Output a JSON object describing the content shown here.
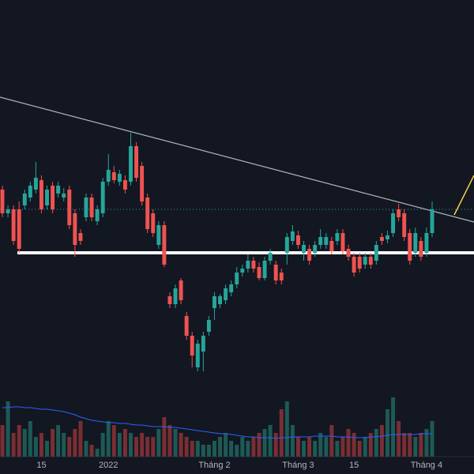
{
  "chart_data": {
    "type": "candlestick",
    "categories": [
      null,
      null,
      null,
      null,
      null,
      null,
      null,
      "15",
      null,
      null,
      null,
      null,
      null,
      null,
      null,
      null,
      null,
      null,
      null,
      "2022",
      null,
      null,
      null,
      null,
      null,
      null,
      null,
      null,
      null,
      null,
      null,
      null,
      null,
      null,
      null,
      null,
      null,
      null,
      "Tháng 2",
      null,
      null,
      null,
      null,
      null,
      null,
      null,
      null,
      null,
      null,
      null,
      null,
      null,
      null,
      "Tháng 3",
      null,
      null,
      null,
      null,
      null,
      null,
      null,
      null,
      null,
      "15",
      null,
      null,
      null,
      null,
      null,
      null,
      null,
      null,
      null,
      null,
      null,
      null,
      "Tháng 4",
      null
    ],
    "open": [
      360,
      330,
      335,
      335,
      340,
      350,
      360,
      372,
      340,
      365,
      355,
      350,
      360,
      330,
      305,
      325,
      350,
      320,
      330,
      370,
      382,
      370,
      372,
      370,
      415,
      390,
      350,
      330,
      290,
      315,
      225,
      215,
      245,
      200,
      175,
      135,
      155,
      180,
      210,
      215,
      220,
      230,
      240,
      255,
      260,
      270,
      262,
      248,
      270,
      265,
      255,
      280,
      295,
      302,
      280,
      285,
      280,
      290,
      290,
      295,
      295,
      305,
      285,
      275,
      275,
      265,
      275,
      270,
      300,
      297,
      305,
      335,
      330,
      305,
      280,
      295,
      280,
      305
    ],
    "high": [
      365,
      340,
      340,
      345,
      360,
      370,
      395,
      378,
      365,
      370,
      370,
      362,
      365,
      335,
      310,
      355,
      355,
      340,
      375,
      405,
      390,
      385,
      378,
      432,
      420,
      395,
      355,
      335,
      320,
      320,
      230,
      240,
      248,
      205,
      180,
      170,
      180,
      200,
      230,
      228,
      240,
      245,
      262,
      265,
      278,
      275,
      268,
      275,
      285,
      270,
      260,
      305,
      315,
      308,
      295,
      290,
      295,
      310,
      305,
      300,
      310,
      310,
      290,
      280,
      280,
      280,
      280,
      295,
      305,
      308,
      335,
      342,
      335,
      310,
      312,
      300,
      312,
      345
    ],
    "low": [
      325,
      325,
      290,
      280,
      335,
      345,
      355,
      330,
      335,
      330,
      350,
      345,
      310,
      275,
      290,
      320,
      320,
      315,
      325,
      365,
      368,
      365,
      355,
      365,
      370,
      340,
      305,
      300,
      285,
      262,
      210,
      210,
      215,
      170,
      135,
      130,
      130,
      175,
      195,
      210,
      215,
      225,
      235,
      250,
      255,
      255,
      245,
      245,
      265,
      240,
      240,
      265,
      290,
      285,
      270,
      265,
      275,
      285,
      285,
      278,
      290,
      278,
      270,
      250,
      255,
      260,
      260,
      265,
      290,
      292,
      300,
      320,
      295,
      265,
      275,
      270,
      275,
      300
    ],
    "close": [
      330,
      335,
      295,
      285,
      355,
      365,
      375,
      335,
      360,
      335,
      365,
      355,
      315,
      290,
      295,
      350,
      325,
      335,
      370,
      385,
      372,
      380,
      360,
      415,
      375,
      345,
      310,
      305,
      315,
      265,
      215,
      235,
      220,
      175,
      150,
      165,
      175,
      195,
      225,
      225,
      235,
      240,
      255,
      260,
      270,
      260,
      248,
      270,
      280,
      245,
      245,
      300,
      307,
      290,
      290,
      270,
      290,
      300,
      300,
      282,
      305,
      282,
      275,
      255,
      260,
      275,
      265,
      290,
      295,
      302,
      330,
      325,
      300,
      270,
      305,
      275,
      305,
      335
    ],
    "ylim": [
      0,
      600
    ],
    "volume": [
      40,
      70,
      30,
      40,
      35,
      45,
      25,
      30,
      20,
      35,
      40,
      30,
      25,
      35,
      45,
      20,
      15,
      10,
      30,
      45,
      40,
      30,
      35,
      30,
      25,
      30,
      25,
      25,
      35,
      50,
      40,
      35,
      30,
      25,
      20,
      20,
      15,
      15,
      20,
      25,
      30,
      20,
      15,
      25,
      20,
      25,
      30,
      35,
      40,
      30,
      60,
      70,
      40,
      25,
      20,
      25,
      20,
      30,
      25,
      40,
      20,
      25,
      35,
      30,
      20,
      25,
      30,
      35,
      40,
      60,
      75,
      45,
      30,
      30,
      25,
      30,
      35,
      45
    ],
    "volume_ma": [
      62,
      62,
      63,
      63,
      62,
      62,
      61,
      60,
      60,
      59,
      58,
      57,
      55,
      53,
      50,
      48,
      46,
      45,
      44,
      43,
      43,
      42,
      42,
      41,
      40,
      40,
      39,
      38,
      38,
      38,
      37,
      37,
      36,
      35,
      34,
      33,
      32,
      31,
      30,
      29,
      29,
      28,
      27,
      26,
      25,
      25,
      24,
      24,
      24,
      23,
      24,
      24,
      25,
      25,
      25,
      25,
      26,
      26,
      26,
      26,
      25,
      25,
      25,
      24,
      24,
      24,
      25,
      25,
      26,
      27,
      28,
      28,
      28,
      28,
      28,
      29,
      29,
      29
    ],
    "volume_ylim": [
      0,
      100
    ],
    "up_color": "#26a69a",
    "down_color": "#ef5350",
    "volume_up_color": "#1d5a55",
    "volume_down_color": "#7a2e33",
    "volume_ma_color": "#2962ff"
  }
}
